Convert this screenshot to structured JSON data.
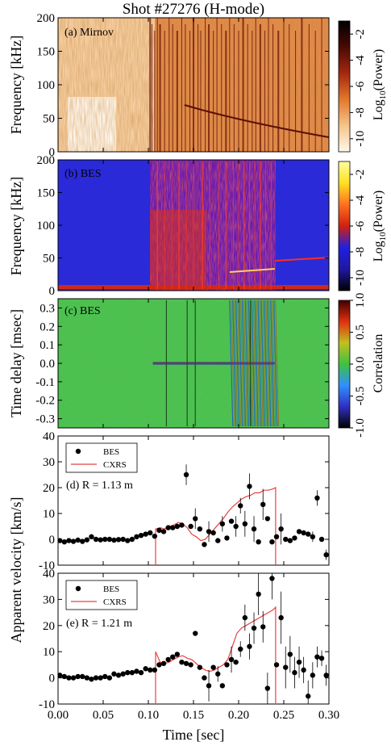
{
  "figure": {
    "title": "Shot #27276 (H-mode)",
    "xlabel": "Time [sec]"
  },
  "chart_data": [
    {
      "type": "heatmap",
      "panel_label": "(a) Mirnov",
      "ylabel": "Frequency [kHz]",
      "ylim": [
        0,
        200
      ],
      "yticks": [
        "0",
        "50",
        "100",
        "150",
        "200"
      ],
      "xlim": [
        0.0,
        0.3
      ],
      "colorbar": {
        "label": "Log10(Power)",
        "label_main": "Log",
        "label_sub": "10",
        "label_rest": "(Power)",
        "range": [
          -11,
          -1
        ],
        "ticks": [
          "-10",
          "-8",
          "-6",
          "-4",
          "-2"
        ],
        "colors": [
          "#fff8ec",
          "#f6c48a",
          "#e2782c",
          "#a42810",
          "#4a0a04",
          "#000000"
        ]
      }
    },
    {
      "type": "heatmap",
      "panel_label": "(b) BES",
      "ylabel": "Frequency [kHz]",
      "ylim": [
        0,
        200
      ],
      "yticks": [
        "0",
        "50",
        "100",
        "150",
        "200"
      ],
      "xlim": [
        0.0,
        0.3
      ],
      "colorbar": {
        "label": "Log10(Power)",
        "label_main": "Log",
        "label_sub": "10",
        "label_rest": "(Power)",
        "range": [
          -11,
          -1
        ],
        "ticks": [
          "-10",
          "-8",
          "-6",
          "-4",
          "-2"
        ],
        "colors": [
          "#000000",
          "#2018a0",
          "#2020e0",
          "#d02010",
          "#ff7020",
          "#ffe020",
          "#ffffa0"
        ]
      }
    },
    {
      "type": "heatmap",
      "panel_label": "(c) BES",
      "ylabel": "Time delay [msec]",
      "ylim": [
        -0.35,
        0.35
      ],
      "yticks": [
        "-0.3",
        "-0.2",
        "-0.1",
        "0.0",
        "0.1",
        "0.2",
        "0.3"
      ],
      "xlim": [
        0.0,
        0.3
      ],
      "colorbar": {
        "label": "Correlation",
        "range": [
          -1.0,
          1.0
        ],
        "ticks": [
          "-1.0",
          "-0.5",
          "0.0",
          "0.5",
          "1.0"
        ],
        "colors": [
          "#000000",
          "#3030c0",
          "#3090ff",
          "#40c040",
          "#c0c020",
          "#e03010",
          "#400000"
        ]
      }
    },
    {
      "type": "scatter",
      "panel_label": "(d) R = 1.13 m",
      "ylim": [
        -10,
        40
      ],
      "yticks": [
        "-10",
        "0",
        "10",
        "20",
        "30",
        "40"
      ],
      "xlim": [
        0.0,
        0.3
      ],
      "legend": {
        "placement": "top-left",
        "entries": [
          "BES",
          "CXRS"
        ]
      },
      "series": [
        {
          "name": "BES",
          "points": [
            [
              0.002,
              -0.5
            ],
            [
              0.007,
              -1
            ],
            [
              0.012,
              -0.5
            ],
            [
              0.017,
              -0.8
            ],
            [
              0.022,
              -0.3
            ],
            [
              0.027,
              -0.8
            ],
            [
              0.032,
              -0.2
            ],
            [
              0.037,
              1
            ],
            [
              0.042,
              0
            ],
            [
              0.047,
              -0.2
            ],
            [
              0.052,
              0
            ],
            [
              0.057,
              0
            ],
            [
              0.062,
              -0.3
            ],
            [
              0.067,
              -0.1
            ],
            [
              0.072,
              0
            ],
            [
              0.077,
              -0.5
            ],
            [
              0.082,
              0
            ],
            [
              0.087,
              1
            ],
            [
              0.092,
              1.5
            ],
            [
              0.097,
              2
            ],
            [
              0.102,
              2.5
            ],
            [
              0.107,
              1.2
            ],
            [
              0.112,
              3.5
            ],
            [
              0.117,
              3
            ],
            [
              0.122,
              4.5
            ],
            [
              0.127,
              4.5
            ],
            [
              0.132,
              5
            ],
            [
              0.137,
              5.5
            ],
            [
              0.142,
              25
            ],
            [
              0.147,
              5
            ],
            [
              0.152,
              8
            ],
            [
              0.157,
              4
            ],
            [
              0.162,
              -2
            ],
            [
              0.167,
              3
            ],
            [
              0.172,
              2.5
            ],
            [
              0.177,
              -0.5
            ],
            [
              0.182,
              6
            ],
            [
              0.187,
              0.5
            ],
            [
              0.192,
              7
            ],
            [
              0.197,
              5
            ],
            [
              0.202,
              13
            ],
            [
              0.207,
              6
            ],
            [
              0.212,
              20.5
            ],
            [
              0.217,
              4
            ],
            [
              0.222,
              -1
            ],
            [
              0.227,
              13.5
            ],
            [
              0.232,
              8
            ],
            [
              0.237,
              -1
            ],
            [
              0.242,
              1
            ],
            [
              0.247,
              4
            ],
            [
              0.252,
              0
            ],
            [
              0.257,
              -0.5
            ],
            [
              0.262,
              0.5
            ],
            [
              0.267,
              3
            ],
            [
              0.272,
              2.5
            ],
            [
              0.277,
              2
            ],
            [
              0.282,
              1
            ],
            [
              0.287,
              16
            ],
            [
              0.292,
              0
            ],
            [
              0.297,
              -6
            ]
          ],
          "errors": [
            0,
            0,
            0,
            0,
            0,
            0,
            0,
            0,
            0,
            0,
            0,
            0,
            0,
            0,
            0,
            0,
            0,
            0,
            0,
            0,
            0,
            0,
            0,
            0,
            0,
            0,
            0,
            0,
            4,
            0,
            4,
            0,
            0,
            4,
            0,
            0,
            3,
            0,
            0,
            4,
            3,
            5,
            5,
            5,
            0,
            6,
            0,
            0,
            0,
            6,
            0,
            0,
            0,
            0,
            0,
            0,
            2,
            3,
            0,
            2
          ]
        },
        {
          "name": "CXRS",
          "line": [
            [
              0.108,
              -10
            ],
            [
              0.108,
              4
            ],
            [
              0.113,
              4.5
            ],
            [
              0.118,
              4
            ],
            [
              0.123,
              5
            ],
            [
              0.128,
              5.5
            ],
            [
              0.133,
              6.5
            ],
            [
              0.138,
              6
            ],
            [
              0.143,
              4.5
            ],
            [
              0.148,
              2
            ],
            [
              0.153,
              1
            ],
            [
              0.158,
              -0.5
            ],
            [
              0.163,
              0
            ],
            [
              0.168,
              2
            ],
            [
              0.173,
              4
            ],
            [
              0.178,
              6
            ],
            [
              0.183,
              8
            ],
            [
              0.188,
              10.5
            ],
            [
              0.193,
              12.5
            ],
            [
              0.198,
              14
            ],
            [
              0.203,
              15.5
            ],
            [
              0.208,
              16.5
            ],
            [
              0.213,
              17
            ],
            [
              0.218,
              18
            ],
            [
              0.223,
              18
            ],
            [
              0.228,
              19
            ],
            [
              0.233,
              19
            ],
            [
              0.238,
              19.5
            ],
            [
              0.241,
              20
            ],
            [
              0.241,
              -10
            ]
          ]
        }
      ]
    },
    {
      "type": "scatter",
      "panel_label": "(e) R = 1.21 m",
      "ylim": [
        -10,
        40
      ],
      "yticks": [
        "-10",
        "0",
        "10",
        "20",
        "30",
        "40"
      ],
      "xlim": [
        0.0,
        0.3
      ],
      "legend": {
        "placement": "top-left",
        "entries": [
          "BES",
          "CXRS"
        ]
      },
      "series": [
        {
          "name": "BES",
          "points": [
            [
              0.002,
              1
            ],
            [
              0.007,
              0.5
            ],
            [
              0.012,
              0
            ],
            [
              0.017,
              0
            ],
            [
              0.022,
              0.5
            ],
            [
              0.027,
              0.5
            ],
            [
              0.032,
              0
            ],
            [
              0.037,
              -0.5
            ],
            [
              0.042,
              0
            ],
            [
              0.047,
              0
            ],
            [
              0.052,
              0.5
            ],
            [
              0.057,
              0
            ],
            [
              0.062,
              1.5
            ],
            [
              0.067,
              1
            ],
            [
              0.072,
              1.5
            ],
            [
              0.077,
              2
            ],
            [
              0.082,
              2
            ],
            [
              0.087,
              2.5
            ],
            [
              0.092,
              2
            ],
            [
              0.097,
              3.5
            ],
            [
              0.102,
              3
            ],
            [
              0.107,
              3
            ],
            [
              0.112,
              5
            ],
            [
              0.117,
              5.5
            ],
            [
              0.122,
              7
            ],
            [
              0.127,
              8
            ],
            [
              0.132,
              9
            ],
            [
              0.137,
              6
            ],
            [
              0.142,
              5.5
            ],
            [
              0.147,
              5
            ],
            [
              0.152,
              17
            ],
            [
              0.157,
              4
            ],
            [
              0.162,
              0
            ],
            [
              0.167,
              -3
            ],
            [
              0.172,
              4
            ],
            [
              0.177,
              1.5
            ],
            [
              0.182,
              -3
            ],
            [
              0.187,
              5
            ],
            [
              0.192,
              7
            ],
            [
              0.197,
              6
            ],
            [
              0.202,
              11
            ],
            [
              0.207,
              23
            ],
            [
              0.212,
              12
            ],
            [
              0.217,
              19
            ],
            [
              0.222,
              32
            ],
            [
              0.227,
              19.5
            ],
            [
              0.232,
              -4
            ],
            [
              0.237,
              38
            ],
            [
              0.242,
              5
            ],
            [
              0.247,
              23
            ],
            [
              0.252,
              4
            ],
            [
              0.257,
              9
            ],
            [
              0.262,
              2
            ],
            [
              0.267,
              6
            ],
            [
              0.272,
              3
            ],
            [
              0.277,
              -7
            ],
            [
              0.282,
              1
            ],
            [
              0.287,
              8
            ],
            [
              0.292,
              7.5
            ],
            [
              0.297,
              1
            ]
          ],
          "errors": [
            0,
            0,
            0,
            0,
            0,
            0,
            0,
            0,
            0,
            0,
            0,
            0,
            0,
            0,
            0,
            0,
            0,
            0,
            0,
            0,
            0,
            0,
            0,
            0,
            0,
            0,
            0,
            0,
            0,
            0,
            0,
            0,
            0,
            6,
            0,
            3,
            0,
            0,
            5,
            0,
            3,
            5,
            5,
            6,
            8,
            6,
            6,
            8,
            0,
            10,
            8,
            7,
            6,
            6,
            5,
            6,
            5,
            4,
            3,
            4
          ]
        },
        {
          "name": "CXRS",
          "line": [
            [
              0.108,
              -10
            ],
            [
              0.108,
              10
            ],
            [
              0.113,
              6
            ],
            [
              0.118,
              5.5
            ],
            [
              0.123,
              6
            ],
            [
              0.128,
              7
            ],
            [
              0.133,
              8
            ],
            [
              0.138,
              8.5
            ],
            [
              0.143,
              7.5
            ],
            [
              0.148,
              7
            ],
            [
              0.153,
              5.5
            ],
            [
              0.158,
              4
            ],
            [
              0.163,
              3
            ],
            [
              0.168,
              2.5
            ],
            [
              0.173,
              3
            ],
            [
              0.178,
              4
            ],
            [
              0.183,
              5
            ],
            [
              0.188,
              7
            ],
            [
              0.193,
              12
            ],
            [
              0.198,
              17
            ],
            [
              0.203,
              19
            ],
            [
              0.208,
              20
            ],
            [
              0.213,
              21
            ],
            [
              0.218,
              22
            ],
            [
              0.223,
              23
            ],
            [
              0.228,
              24
            ],
            [
              0.233,
              25
            ],
            [
              0.238,
              26
            ],
            [
              0.241,
              27
            ],
            [
              0.241,
              -10
            ]
          ]
        }
      ]
    }
  ],
  "shared_ylabel_de": "Apparent velocity [km/s]",
  "xaxis": {
    "ticks": [
      "0.00",
      "0.05",
      "0.10",
      "0.15",
      "0.20",
      "0.25",
      "0.30"
    ]
  }
}
